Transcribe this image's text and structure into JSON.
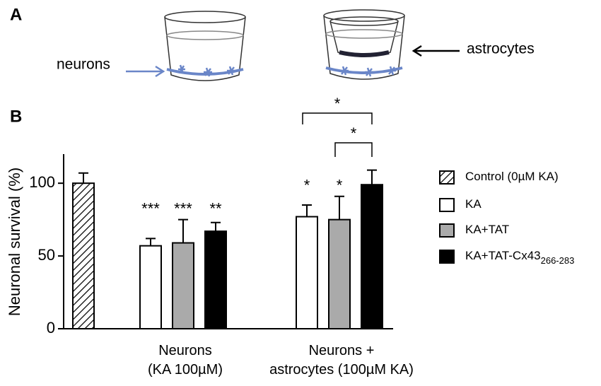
{
  "panel_a": {
    "label": "A",
    "neurons": "neurons",
    "astrocytes": "astrocytes"
  },
  "panel_b_label": "B",
  "chart_data": {
    "type": "bar",
    "ylabel": "Neuronal survival (%)",
    "categories": [
      null,
      "Neurons\n(KA 100µM)",
      "Neurons +\nastrocytes (100µM KA)"
    ],
    "ylim": [
      0,
      120
    ],
    "yticks": [
      0,
      50,
      100
    ],
    "series": [
      {
        "name": "Control (0µM KA)",
        "color": "#ffffff",
        "hatch": true,
        "values": [
          100,
          null,
          null
        ],
        "errors": [
          7,
          null,
          null
        ],
        "significance": [
          null,
          null,
          null
        ]
      },
      {
        "name": "KA",
        "color": "#ffffff",
        "values": [
          null,
          57,
          77
        ],
        "errors": [
          null,
          5,
          8
        ],
        "significance": [
          null,
          "***",
          "*"
        ]
      },
      {
        "name": "KA+TAT",
        "color": "#aaaaaa",
        "values": [
          null,
          59,
          75
        ],
        "errors": [
          null,
          16,
          16
        ],
        "significance": [
          null,
          "***",
          "*"
        ]
      },
      {
        "name": "KA+TAT-Cx43",
        "subscript": "266-283",
        "color": "#000000",
        "values": [
          null,
          67,
          99
        ],
        "errors": [
          null,
          6,
          10
        ],
        "significance": [
          null,
          "**",
          null
        ]
      }
    ],
    "brackets": [
      "*",
      "*"
    ]
  }
}
